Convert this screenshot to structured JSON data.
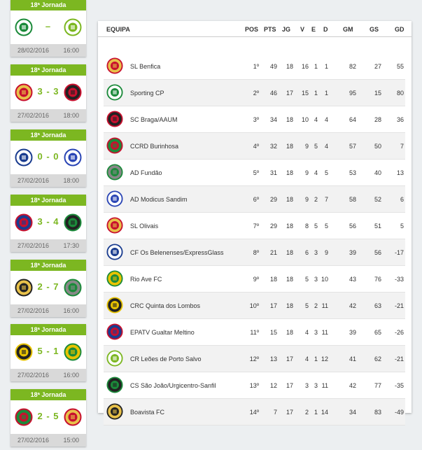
{
  "matches": [
    {
      "round": "18ª Jornada",
      "score": "–",
      "date": "28/02/2016",
      "time": "16:00",
      "home": {
        "icon": "sporting-crest",
        "c1": "#1b8a3a",
        "c2": "#ffffff"
      },
      "away": {
        "icon": "portosalvo-crest",
        "c1": "#7cb721",
        "c2": "#ffffff"
      }
    },
    {
      "round": "18ª Jornada",
      "score": "3 - 3",
      "date": "27/02/2016",
      "time": "18:00",
      "home": {
        "icon": "olivais-crest",
        "c1": "#c8102e",
        "c2": "#e8c14a"
      },
      "away": {
        "icon": "braga-crest",
        "c1": "#c8102e",
        "c2": "#222222"
      }
    },
    {
      "round": "18ª Jornada",
      "score": "0 - 0",
      "date": "27/02/2016",
      "time": "18:00",
      "home": {
        "icon": "belenenses-crest",
        "c1": "#1a3c8f",
        "c2": "#ffffff"
      },
      "away": {
        "icon": "sandim-crest",
        "c1": "#2a45b5",
        "c2": "#ffffff"
      }
    },
    {
      "round": "18ª Jornada",
      "score": "3 - 4",
      "date": "27/02/2016",
      "time": "17:30",
      "home": {
        "icon": "gualtar-crest",
        "c1": "#c8102e",
        "c2": "#1a3c8f"
      },
      "away": {
        "icon": "saojoao-crest",
        "c1": "#1b8a3a",
        "c2": "#222222"
      }
    },
    {
      "round": "18ª Jornada",
      "score": "2 - 7",
      "date": "27/02/2016",
      "time": "16:00",
      "home": {
        "icon": "boavista-crest",
        "c1": "#222222",
        "c2": "#e8c14a"
      },
      "away": {
        "icon": "fundao-crest",
        "c1": "#1b8a3a",
        "c2": "#888888"
      }
    },
    {
      "round": "18ª Jornada",
      "score": "5 - 1",
      "date": "27/02/2016",
      "time": "16:00",
      "home": {
        "icon": "lombos-crest",
        "c1": "#e8c300",
        "c2": "#222222"
      },
      "away": {
        "icon": "rioave-crest",
        "c1": "#1b8a3a",
        "c2": "#e8c300"
      }
    },
    {
      "round": "18ª Jornada",
      "score": "2 - 5",
      "date": "27/02/2016",
      "time": "15:00",
      "home": {
        "icon": "burinhosa-crest",
        "c1": "#c8102e",
        "c2": "#1b8a3a"
      },
      "away": {
        "icon": "benfica-crest",
        "c1": "#c8102e",
        "c2": "#e8c14a"
      }
    }
  ],
  "table": {
    "headers": {
      "team": "EQUIPA",
      "pos": "POS",
      "pts": "PTS",
      "jg": "JG",
      "v": "V",
      "e": "E",
      "d": "D",
      "gm": "GM",
      "gs": "GS",
      "gd": "GD"
    },
    "rows": [
      {
        "name": "SL Benfica",
        "pos": "1º",
        "pts": "49",
        "jg": "18",
        "v": "16",
        "e": "1",
        "d": "1",
        "gm": "82",
        "gs": "27",
        "gd": "55",
        "icon": "benfica-crest",
        "c1": "#c8102e",
        "c2": "#e8c14a"
      },
      {
        "name": "Sporting CP",
        "pos": "2º",
        "pts": "46",
        "jg": "17",
        "v": "15",
        "e": "1",
        "d": "1",
        "gm": "95",
        "gs": "15",
        "gd": "80",
        "icon": "sporting-crest",
        "c1": "#1b8a3a",
        "c2": "#ffffff"
      },
      {
        "name": "SC Braga/AAUM",
        "pos": "3º",
        "pts": "34",
        "jg": "18",
        "v": "10",
        "e": "4",
        "d": "4",
        "gm": "64",
        "gs": "28",
        "gd": "36",
        "icon": "braga-crest",
        "c1": "#c8102e",
        "c2": "#222222"
      },
      {
        "name": "CCRD Burinhosa",
        "pos": "4º",
        "pts": "32",
        "jg": "18",
        "v": "9",
        "e": "5",
        "d": "4",
        "gm": "57",
        "gs": "50",
        "gd": "7",
        "icon": "burinhosa-crest",
        "c1": "#c8102e",
        "c2": "#1b8a3a"
      },
      {
        "name": "AD Fundão",
        "pos": "5º",
        "pts": "31",
        "jg": "18",
        "v": "9",
        "e": "4",
        "d": "5",
        "gm": "53",
        "gs": "40",
        "gd": "13",
        "icon": "fundao-crest",
        "c1": "#1b8a3a",
        "c2": "#888888"
      },
      {
        "name": "AD Modicus Sandim",
        "pos": "6º",
        "pts": "29",
        "jg": "18",
        "v": "9",
        "e": "2",
        "d": "7",
        "gm": "58",
        "gs": "52",
        "gd": "6",
        "icon": "sandim-crest",
        "c1": "#2a45b5",
        "c2": "#ffffff"
      },
      {
        "name": "SL Olivais",
        "pos": "7º",
        "pts": "29",
        "jg": "18",
        "v": "8",
        "e": "5",
        "d": "5",
        "gm": "56",
        "gs": "51",
        "gd": "5",
        "icon": "olivais-crest",
        "c1": "#c8102e",
        "c2": "#e8c14a"
      },
      {
        "name": "CF Os Belenenses/ExpressGlass",
        "pos": "8º",
        "pts": "21",
        "jg": "18",
        "v": "6",
        "e": "3",
        "d": "9",
        "gm": "39",
        "gs": "56",
        "gd": "-17",
        "icon": "belenenses-crest",
        "c1": "#1a3c8f",
        "c2": "#ffffff"
      },
      {
        "name": "Rio Ave FC",
        "pos": "9º",
        "pts": "18",
        "jg": "18",
        "v": "5",
        "e": "3",
        "d": "10",
        "gm": "43",
        "gs": "76",
        "gd": "-33",
        "icon": "rioave-crest",
        "c1": "#1b8a3a",
        "c2": "#e8c300"
      },
      {
        "name": "CRC Quinta dos Lombos",
        "pos": "10º",
        "pts": "17",
        "jg": "18",
        "v": "5",
        "e": "2",
        "d": "11",
        "gm": "42",
        "gs": "63",
        "gd": "-21",
        "icon": "lombos-crest",
        "c1": "#e8c300",
        "c2": "#222222"
      },
      {
        "name": "EPATV Gualtar Meltino",
        "pos": "11º",
        "pts": "15",
        "jg": "18",
        "v": "4",
        "e": "3",
        "d": "11",
        "gm": "39",
        "gs": "65",
        "gd": "-26",
        "icon": "gualtar-crest",
        "c1": "#c8102e",
        "c2": "#1a3c8f"
      },
      {
        "name": "CR Leões de Porto Salvo",
        "pos": "12º",
        "pts": "13",
        "jg": "17",
        "v": "4",
        "e": "1",
        "d": "12",
        "gm": "41",
        "gs": "62",
        "gd": "-21",
        "icon": "portosalvo-crest",
        "c1": "#7cb721",
        "c2": "#ffffff"
      },
      {
        "name": "CS São João/Urgicentro-Sanfil",
        "pos": "13º",
        "pts": "12",
        "jg": "17",
        "v": "3",
        "e": "3",
        "d": "11",
        "gm": "42",
        "gs": "77",
        "gd": "-35",
        "icon": "saojoao-crest",
        "c1": "#1b8a3a",
        "c2": "#222222"
      },
      {
        "name": "Boavista FC",
        "pos": "14º",
        "pts": "7",
        "jg": "17",
        "v": "2",
        "e": "1",
        "d": "14",
        "gm": "34",
        "gs": "83",
        "gd": "-49",
        "icon": "boavista-crest",
        "c1": "#222222",
        "c2": "#e8c14a"
      }
    ]
  },
  "colors": {
    "accent": "#7cb721",
    "row_alt": "#f2f2f2",
    "footer": "#d9d9d9"
  }
}
